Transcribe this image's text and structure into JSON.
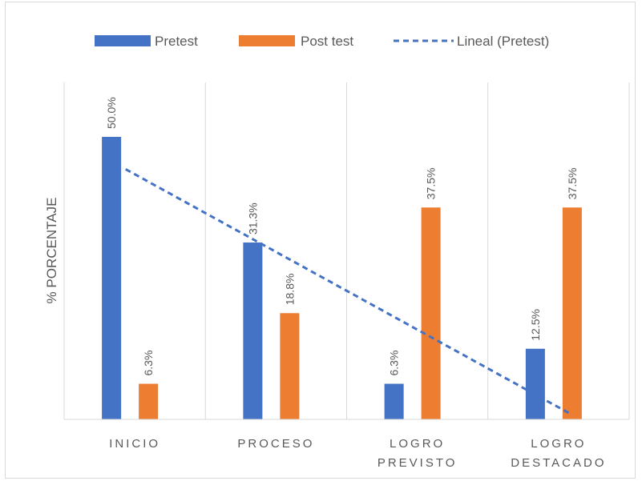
{
  "chart_data": {
    "type": "bar",
    "title": "",
    "ylabel": "% PORCENTAJE",
    "xlabel": "",
    "categories": [
      [
        "INICIO"
      ],
      [
        "PROCESO"
      ],
      [
        "LOGRO",
        "PREVISTO"
      ],
      [
        "LOGRO",
        "DESTACADO"
      ]
    ],
    "series": [
      {
        "name": "Pretest",
        "values": [
          50.0,
          31.3,
          6.3,
          12.5
        ],
        "labels": [
          "50.0%",
          "31.3%",
          "6.3%",
          "12.5%"
        ],
        "color": "#4472c4"
      },
      {
        "name": "Post test",
        "values": [
          6.3,
          18.8,
          37.5,
          37.5
        ],
        "labels": [
          "6.3%",
          "18.8%",
          "37.5%",
          "37.5%"
        ],
        "color": "#ed7d31"
      }
    ],
    "trendline": {
      "name": "Lineal (Pretest)",
      "of_series": "Pretest",
      "type": "linear",
      "color": "#4472c4",
      "style": "dashed"
    },
    "ylim": [
      0,
      55
    ],
    "grid": "vertical category separators",
    "legend": "top",
    "value_axis_ticks": "hidden"
  }
}
